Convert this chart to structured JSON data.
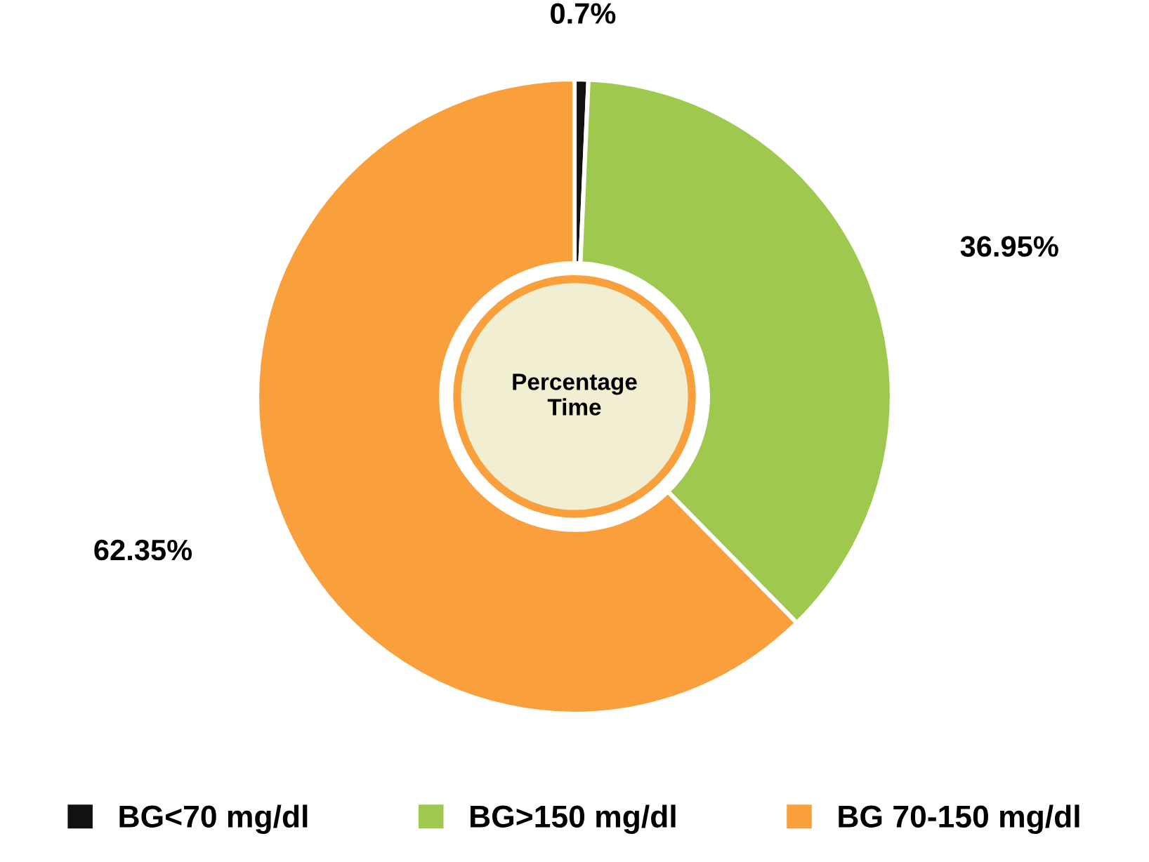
{
  "chart_data": {
    "type": "donut",
    "categories": [
      "BG<70 mg/dl",
      "BG>150 mg/dl",
      "BG 70-150 mg/dl"
    ],
    "values": [
      0.7,
      36.95,
      62.35
    ],
    "colors": [
      "#111111",
      "#9ec94e",
      "#f9a03c"
    ],
    "value_labels": [
      "0.7%",
      "36.95%",
      "62.35%"
    ],
    "annotations": [
      "Percentage\nTime"
    ],
    "legend": "bottom"
  }
}
